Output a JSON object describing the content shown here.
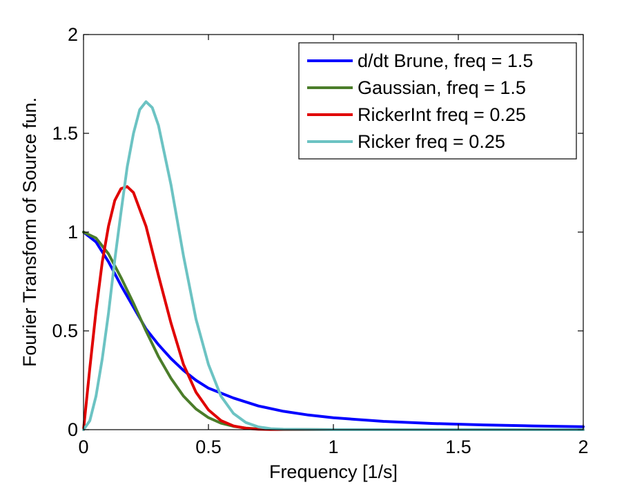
{
  "chart_data": {
    "type": "line",
    "title": "",
    "xlabel": "Frequency [1/s]",
    "ylabel": "Fourier Transform of Source fun.",
    "xlim": [
      0,
      2
    ],
    "ylim": [
      0,
      2
    ],
    "xticks": [
      0,
      0.5,
      1,
      1.5,
      2
    ],
    "xtick_labels": [
      "0",
      "0.5",
      "1",
      "1.5",
      "2"
    ],
    "yticks": [
      0,
      0.5,
      1,
      1.5,
      2
    ],
    "ytick_labels": [
      "0",
      "0.5",
      "1",
      "1.5",
      "2"
    ],
    "grid": false,
    "legend_position": "top-right",
    "series": [
      {
        "name": "d/dt Brune, freq = 1.5",
        "color": "#0000ff",
        "x": [
          0,
          0.05,
          0.1,
          0.15,
          0.2,
          0.25,
          0.3,
          0.35,
          0.4,
          0.45,
          0.5,
          0.6,
          0.7,
          0.8,
          0.9,
          1.0,
          1.2,
          1.4,
          1.6,
          1.8,
          2.0
        ],
        "y": [
          1.0,
          0.95,
          0.85,
          0.73,
          0.62,
          0.51,
          0.43,
          0.36,
          0.3,
          0.25,
          0.21,
          0.16,
          0.12,
          0.093,
          0.074,
          0.06,
          0.042,
          0.031,
          0.024,
          0.019,
          0.015
        ]
      },
      {
        "name": "Gaussian, freq = 1.5",
        "color": "#4b7d2a",
        "x": [
          0,
          0.05,
          0.1,
          0.15,
          0.2,
          0.25,
          0.3,
          0.35,
          0.4,
          0.45,
          0.5,
          0.55,
          0.6,
          0.65,
          0.7,
          0.8,
          1.0,
          1.5,
          2.0
        ],
        "y": [
          1.0,
          0.97,
          0.89,
          0.77,
          0.64,
          0.5,
          0.37,
          0.26,
          0.17,
          0.105,
          0.061,
          0.033,
          0.017,
          0.008,
          0.004,
          0.001,
          0.0,
          0.0,
          0.0
        ]
      },
      {
        "name": "RickerInt freq = 0.25",
        "color": "#e00000",
        "x": [
          0,
          0.025,
          0.05,
          0.075,
          0.1,
          0.125,
          0.15,
          0.175,
          0.2,
          0.25,
          0.3,
          0.35,
          0.4,
          0.45,
          0.5,
          0.55,
          0.6,
          0.65,
          0.7,
          0.75,
          1.0,
          1.5,
          2.0
        ],
        "y": [
          0.0,
          0.31,
          0.6,
          0.85,
          1.03,
          1.16,
          1.22,
          1.23,
          1.2,
          1.03,
          0.78,
          0.54,
          0.33,
          0.19,
          0.1,
          0.046,
          0.019,
          0.007,
          0.002,
          0.001,
          0.0,
          0.0,
          0.0
        ]
      },
      {
        "name": "Ricker freq = 0.25",
        "color": "#6cc3c3",
        "x": [
          0,
          0.025,
          0.05,
          0.075,
          0.1,
          0.125,
          0.15,
          0.175,
          0.2,
          0.225,
          0.25,
          0.275,
          0.3,
          0.35,
          0.4,
          0.45,
          0.5,
          0.55,
          0.6,
          0.65,
          0.7,
          0.75,
          0.8,
          1.0,
          1.5,
          2.0
        ],
        "y": [
          0.0,
          0.045,
          0.17,
          0.36,
          0.59,
          0.86,
          1.1,
          1.33,
          1.5,
          1.62,
          1.66,
          1.63,
          1.54,
          1.24,
          0.88,
          0.56,
          0.33,
          0.17,
          0.082,
          0.036,
          0.014,
          0.005,
          0.002,
          0.0,
          0.0,
          0.0
        ]
      }
    ]
  }
}
